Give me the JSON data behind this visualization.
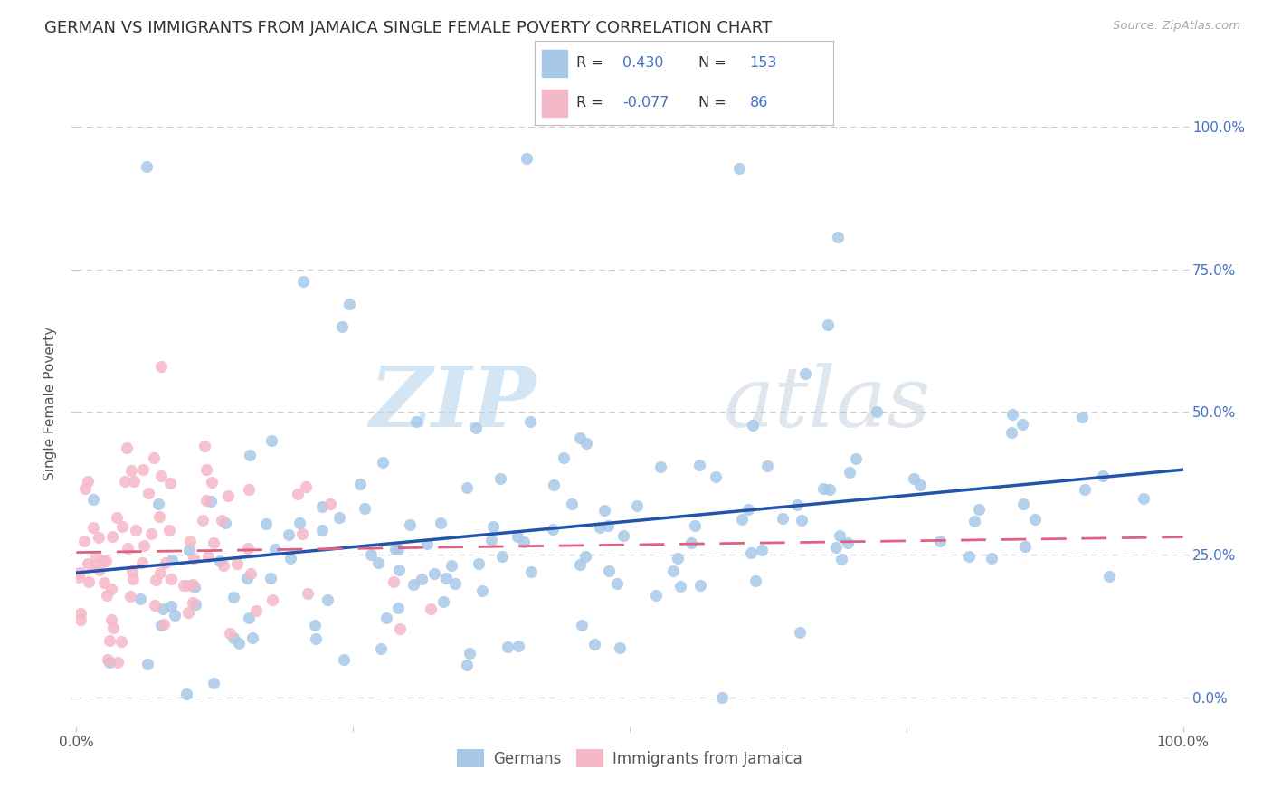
{
  "title": "GERMAN VS IMMIGRANTS FROM JAMAICA SINGLE FEMALE POVERTY CORRELATION CHART",
  "source": "Source: ZipAtlas.com",
  "ylabel": "Single Female Poverty",
  "xlim": [
    0.0,
    1.0
  ],
  "ylim": [
    -0.05,
    1.08
  ],
  "german_R": 0.43,
  "german_N": 153,
  "jamaica_R": -0.077,
  "jamaica_N": 86,
  "german_color": "#a8c8e8",
  "german_line_color": "#2255aa",
  "jamaica_color": "#f5b8c8",
  "jamaica_line_color": "#e06080",
  "watermark_zip": "ZIP",
  "watermark_atlas": "atlas",
  "legend_german_label": "Germans",
  "legend_jamaica_label": "Immigrants from Jamaica",
  "background_color": "#ffffff",
  "grid_color": "#cccccc",
  "title_fontsize": 13,
  "axis_label_fontsize": 11,
  "tick_fontsize": 11,
  "seed": 12345
}
